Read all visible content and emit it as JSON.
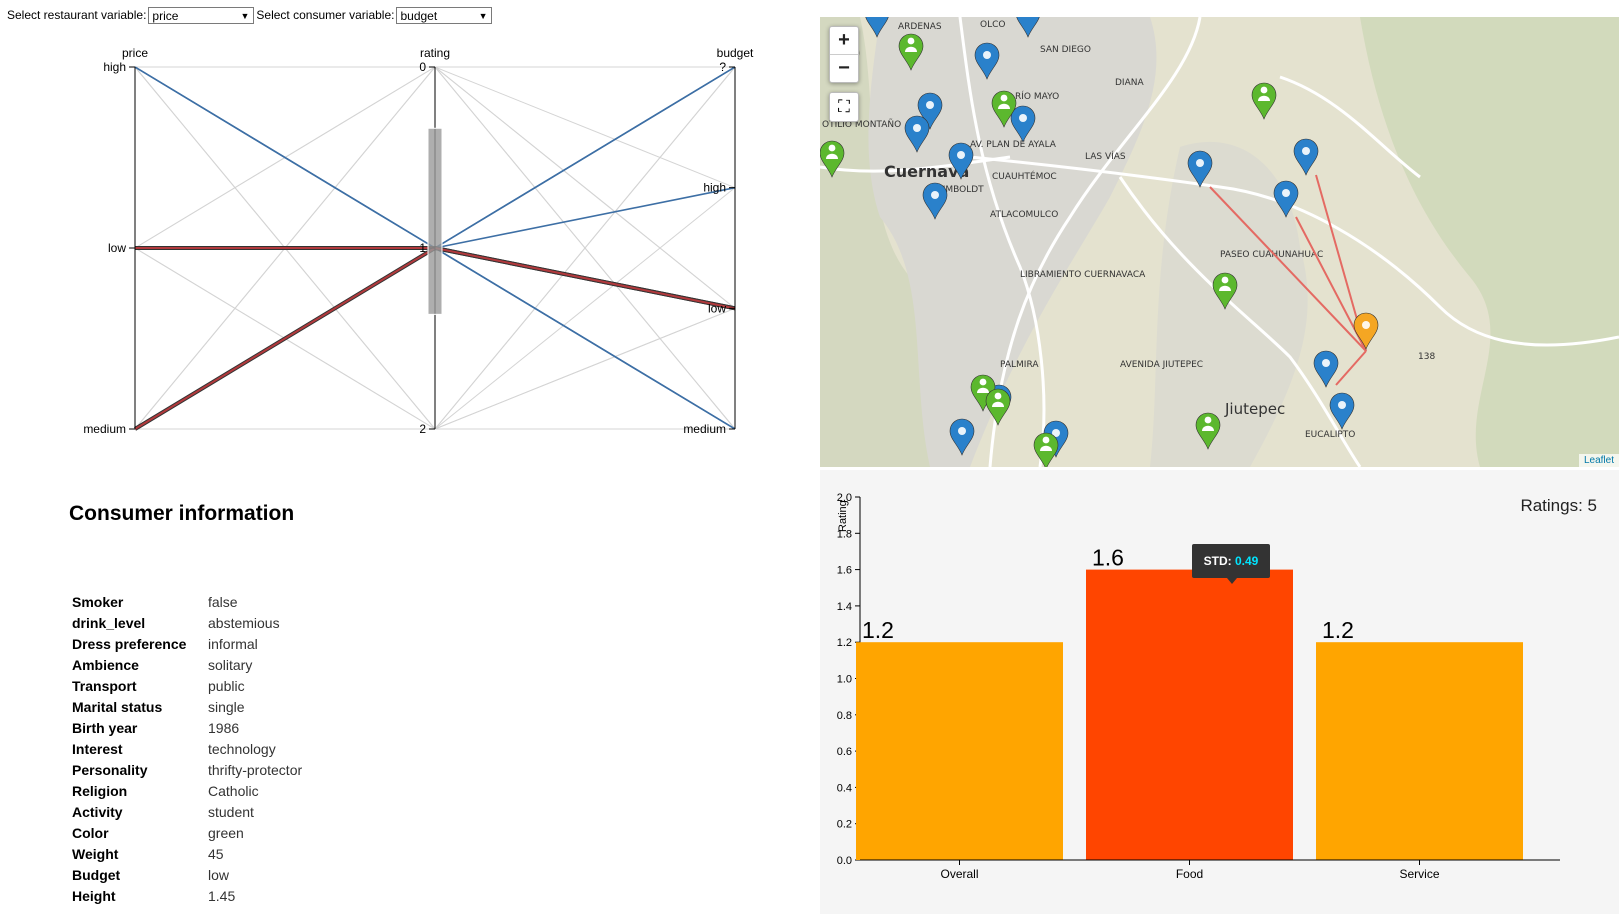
{
  "controls": {
    "restaurant_label": "Select restaurant variable:",
    "restaurant_value": "price",
    "consumer_label": "Select consumer variable:",
    "consumer_value": "budget"
  },
  "parallel": {
    "axes": [
      {
        "name": "price",
        "ticks": [
          "high",
          "low",
          "medium"
        ]
      },
      {
        "name": "rating",
        "ticks": [
          "0",
          "1",
          "2"
        ]
      },
      {
        "name": "budget",
        "ticks": [
          "?",
          "high",
          "low",
          "medium"
        ]
      }
    ],
    "colors": {
      "background": "#d4d4d4",
      "highlight": "#3d6fa5",
      "selected": "#b2393c"
    },
    "background_lines": [
      [
        "high",
        "0",
        "?"
      ],
      [
        "high",
        "1",
        "high"
      ],
      [
        "high",
        "2",
        "low"
      ],
      [
        "high",
        "2",
        "medium"
      ],
      [
        "low",
        "0",
        "medium"
      ],
      [
        "low",
        "2",
        "?"
      ],
      [
        "low",
        "0",
        "high"
      ],
      [
        "low",
        "2",
        "low"
      ],
      [
        "medium",
        "0",
        "low"
      ],
      [
        "medium",
        "2",
        "high"
      ],
      [
        "medium",
        "0",
        "medium"
      ],
      [
        "medium",
        "2",
        "?"
      ],
      [
        "high",
        "0",
        "low"
      ],
      [
        "medium",
        "1",
        "?"
      ],
      [
        "low",
        "1",
        "medium"
      ]
    ],
    "highlight_lines": [
      [
        "high",
        "1",
        "?"
      ],
      [
        "high",
        "1",
        "medium"
      ],
      [
        "low",
        "1",
        "high"
      ],
      [
        "medium",
        "1",
        "?"
      ],
      [
        "low",
        "1",
        "medium"
      ]
    ],
    "selected_lines": [
      [
        "low",
        "1",
        "low"
      ],
      [
        "medium",
        "1",
        "low"
      ]
    ],
    "brush": {
      "axis": "rating",
      "range": [
        0.67,
        1.35
      ]
    }
  },
  "consumer": {
    "title": "Consumer information",
    "rows": [
      {
        "key": "Smoker",
        "value": "false"
      },
      {
        "key": "drink_level",
        "value": "abstemious"
      },
      {
        "key": "Dress preference",
        "value": "informal"
      },
      {
        "key": "Ambience",
        "value": "solitary"
      },
      {
        "key": "Transport",
        "value": "public"
      },
      {
        "key": "Marital status",
        "value": "single"
      },
      {
        "key": "Birth year",
        "value": "1986"
      },
      {
        "key": "Interest",
        "value": "technology"
      },
      {
        "key": "Personality",
        "value": "thrifty-protector"
      },
      {
        "key": "Religion",
        "value": "Catholic"
      },
      {
        "key": "Activity",
        "value": "student"
      },
      {
        "key": "Color",
        "value": "green"
      },
      {
        "key": "Weight",
        "value": "45"
      },
      {
        "key": "Budget",
        "value": "low"
      },
      {
        "key": "Height",
        "value": "1.45"
      }
    ]
  },
  "map": {
    "zoom_in": "+",
    "zoom_out": "−",
    "fullscreen_icon": "⛶",
    "attribution": "Leaflet",
    "labels": [
      "Cuernava",
      "Jiutepec",
      "AV. PLAN DE AYALA",
      "RÍO MAYO",
      "SAN DIEGO",
      "DIANA",
      "LAS VÍAS",
      "CUAUHTÉMOC",
      "ATLACOMULCO",
      "LIBRAMIENTO CUERNAVACA",
      "PASEO CUAHUNAHUAC",
      "AVENIDA JIUTEPEC",
      "EUCALIPTO",
      "PALMIRA",
      "138",
      "OLCO",
      "OTILIO MONTAÑO",
      "ARDENAS",
      "HUMBOLDT"
    ],
    "colors": {
      "restaurant": "#2a81cb",
      "consumer": "#5cb82e",
      "selected": "#f5a623",
      "link": "#e46a63"
    }
  },
  "bar_chart": {
    "ratings_label": "Ratings: 5",
    "tooltip_label": "STD:",
    "tooltip_value": "0.49",
    "colors": {
      "normal": "#ffa500",
      "highlight": "#ff4500"
    }
  },
  "chart_data": {
    "type": "bar",
    "categories": [
      "Overall",
      "Food",
      "Service"
    ],
    "values": [
      1.2,
      1.6,
      1.2
    ],
    "value_labels": [
      "1.2",
      "1.6",
      "1.2"
    ],
    "ylabel": "Rating",
    "ylim": [
      0,
      2.0
    ],
    "yticks": [
      "0.0",
      "0.2",
      "0.4",
      "0.6",
      "0.8",
      "1.0",
      "1.2",
      "1.4",
      "1.6",
      "1.8",
      "2.0"
    ],
    "highlight_index": 1,
    "grid": false
  }
}
